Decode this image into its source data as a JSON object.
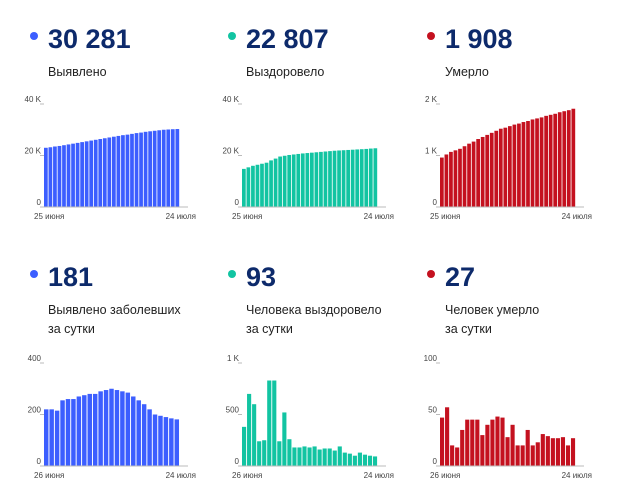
{
  "panels": [
    {
      "value": "30 281",
      "caption_lines": [
        "Выявлено"
      ],
      "color": "#3c5eff"
    },
    {
      "value": "22 807",
      "caption_lines": [
        "Выздоровело"
      ],
      "color": "#12c4a2"
    },
    {
      "value": "1 908",
      "caption_lines": [
        "Умерло"
      ],
      "color": "#c4111f"
    },
    {
      "value": "181",
      "caption_lines": [
        "Выявлено заболевших",
        "за сутки"
      ],
      "color": "#3c5eff"
    },
    {
      "value": "93",
      "caption_lines": [
        "Человека выздоровело",
        "за сутки"
      ],
      "color": "#12c4a2"
    },
    {
      "value": "27",
      "caption_lines": [
        "Человек умерло",
        "за сутки"
      ],
      "color": "#c4111f"
    }
  ],
  "chart_data": [
    {
      "type": "bar",
      "x_start_label": "25 июня",
      "x_end_label": "24 июля",
      "yticks": [
        0,
        20000,
        40000
      ],
      "ytick_labels": [
        "0",
        "20 K",
        "40 K"
      ],
      "ylim": [
        0,
        40000
      ],
      "color": "#3c5eff",
      "values": [
        23000,
        23200,
        23500,
        23700,
        24000,
        24300,
        24600,
        24900,
        25200,
        25500,
        25800,
        26100,
        26400,
        26700,
        27000,
        27300,
        27600,
        27900,
        28100,
        28400,
        28700,
        28900,
        29200,
        29400,
        29600,
        29800,
        30000,
        30100,
        30200,
        30281
      ]
    },
    {
      "type": "bar",
      "x_start_label": "25 июня",
      "x_end_label": "24 июля",
      "yticks": [
        0,
        20000,
        40000
      ],
      "ytick_labels": [
        "0",
        "20 K",
        "40 K"
      ],
      "ylim": [
        0,
        40000
      ],
      "color": "#12c4a2",
      "values": [
        14800,
        15400,
        16000,
        16400,
        16800,
        17200,
        18100,
        18800,
        19600,
        19900,
        20200,
        20400,
        20600,
        20800,
        20950,
        21100,
        21250,
        21400,
        21550,
        21700,
        21850,
        21950,
        22050,
        22150,
        22250,
        22350,
        22450,
        22550,
        22700,
        22807
      ]
    },
    {
      "type": "bar",
      "x_start_label": "25 июня",
      "x_end_label": "24 июля",
      "yticks": [
        0,
        1000,
        2000
      ],
      "ytick_labels": [
        "0",
        "1 K",
        "2 K"
      ],
      "ylim": [
        0,
        2000
      ],
      "color": "#c4111f",
      "values": [
        960,
        1020,
        1070,
        1100,
        1130,
        1180,
        1230,
        1270,
        1320,
        1360,
        1400,
        1440,
        1480,
        1520,
        1540,
        1570,
        1600,
        1620,
        1650,
        1670,
        1700,
        1720,
        1740,
        1770,
        1790,
        1810,
        1840,
        1860,
        1880,
        1908
      ]
    },
    {
      "type": "bar",
      "x_start_label": "26 июня",
      "x_end_label": "24 июля",
      "yticks": [
        0,
        200,
        400
      ],
      "ytick_labels": [
        "0",
        "200",
        "400"
      ],
      "ylim": [
        0,
        400
      ],
      "color": "#3c5eff",
      "values": [
        220,
        220,
        215,
        255,
        260,
        260,
        270,
        275,
        280,
        280,
        290,
        295,
        300,
        295,
        290,
        285,
        270,
        255,
        240,
        220,
        200,
        195,
        190,
        185,
        181
      ]
    },
    {
      "type": "bar",
      "x_start_label": "26 июня",
      "x_end_label": "24 июля",
      "yticks": [
        0,
        500,
        1000
      ],
      "ytick_labels": [
        "0",
        "500",
        "1 K"
      ],
      "ylim": [
        0,
        1000
      ],
      "color": "#12c4a2",
      "values": [
        380,
        700,
        600,
        240,
        250,
        830,
        830,
        240,
        520,
        260,
        180,
        180,
        190,
        180,
        190,
        160,
        170,
        170,
        150,
        190,
        130,
        120,
        100,
        130,
        110,
        100,
        93
      ]
    },
    {
      "type": "bar",
      "x_start_label": "26 июня",
      "x_end_label": "24 июля",
      "yticks": [
        0,
        50,
        100
      ],
      "ytick_labels": [
        "0",
        "50",
        "100"
      ],
      "ylim": [
        0,
        100
      ],
      "color": "#c4111f",
      "values": [
        47,
        57,
        20,
        18,
        35,
        45,
        45,
        45,
        30,
        40,
        45,
        48,
        47,
        28,
        40,
        20,
        20,
        35,
        20,
        23,
        31,
        29,
        27,
        27,
        28,
        20,
        27
      ]
    }
  ]
}
